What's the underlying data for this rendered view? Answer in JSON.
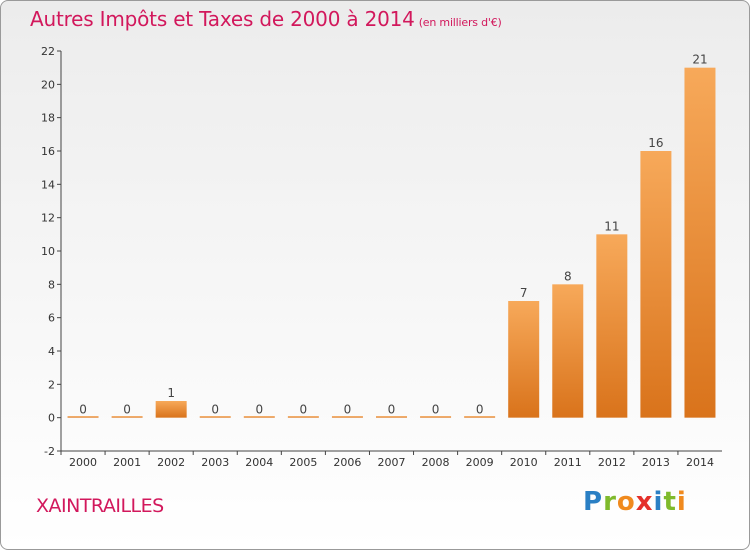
{
  "title": "Autres Impôts et Taxes de 2000 à 2014",
  "subtitle": "(en milliers d'€)",
  "commune": "XAINTRAILLES",
  "brand": {
    "letters": [
      "P",
      "r",
      "o",
      "x",
      "i",
      "t",
      "i"
    ],
    "colors": [
      "#2a7fc4",
      "#7fba2c",
      "#f08a1e",
      "#e4302a",
      "#2a7fc4",
      "#7fba2c",
      "#f08a1e"
    ]
  },
  "colors": {
    "bar_top": "#f7a95a",
    "bar_bottom": "#d9731b",
    "title": "#d2185c"
  },
  "chart_data": {
    "type": "bar",
    "categories": [
      "2000",
      "2001",
      "2002",
      "2003",
      "2004",
      "2005",
      "2006",
      "2007",
      "2008",
      "2009",
      "2010",
      "2011",
      "2012",
      "2013",
      "2014"
    ],
    "values": [
      0,
      0,
      1,
      0,
      0,
      0,
      0,
      0,
      0,
      0,
      7,
      8,
      11,
      16,
      21
    ],
    "data_labels": [
      "0",
      "0",
      "1",
      "0",
      "0",
      "0",
      "0",
      "0",
      "0",
      "0",
      "7",
      "8",
      "11",
      "16",
      "21"
    ],
    "ylim": [
      -2,
      22
    ],
    "yticks": [
      -2,
      0,
      2,
      4,
      6,
      8,
      10,
      12,
      14,
      16,
      18,
      20,
      22
    ],
    "grid": false,
    "title": "Autres Impôts et Taxes de 2000 à 2014",
    "xlabel": "",
    "ylabel": ""
  }
}
